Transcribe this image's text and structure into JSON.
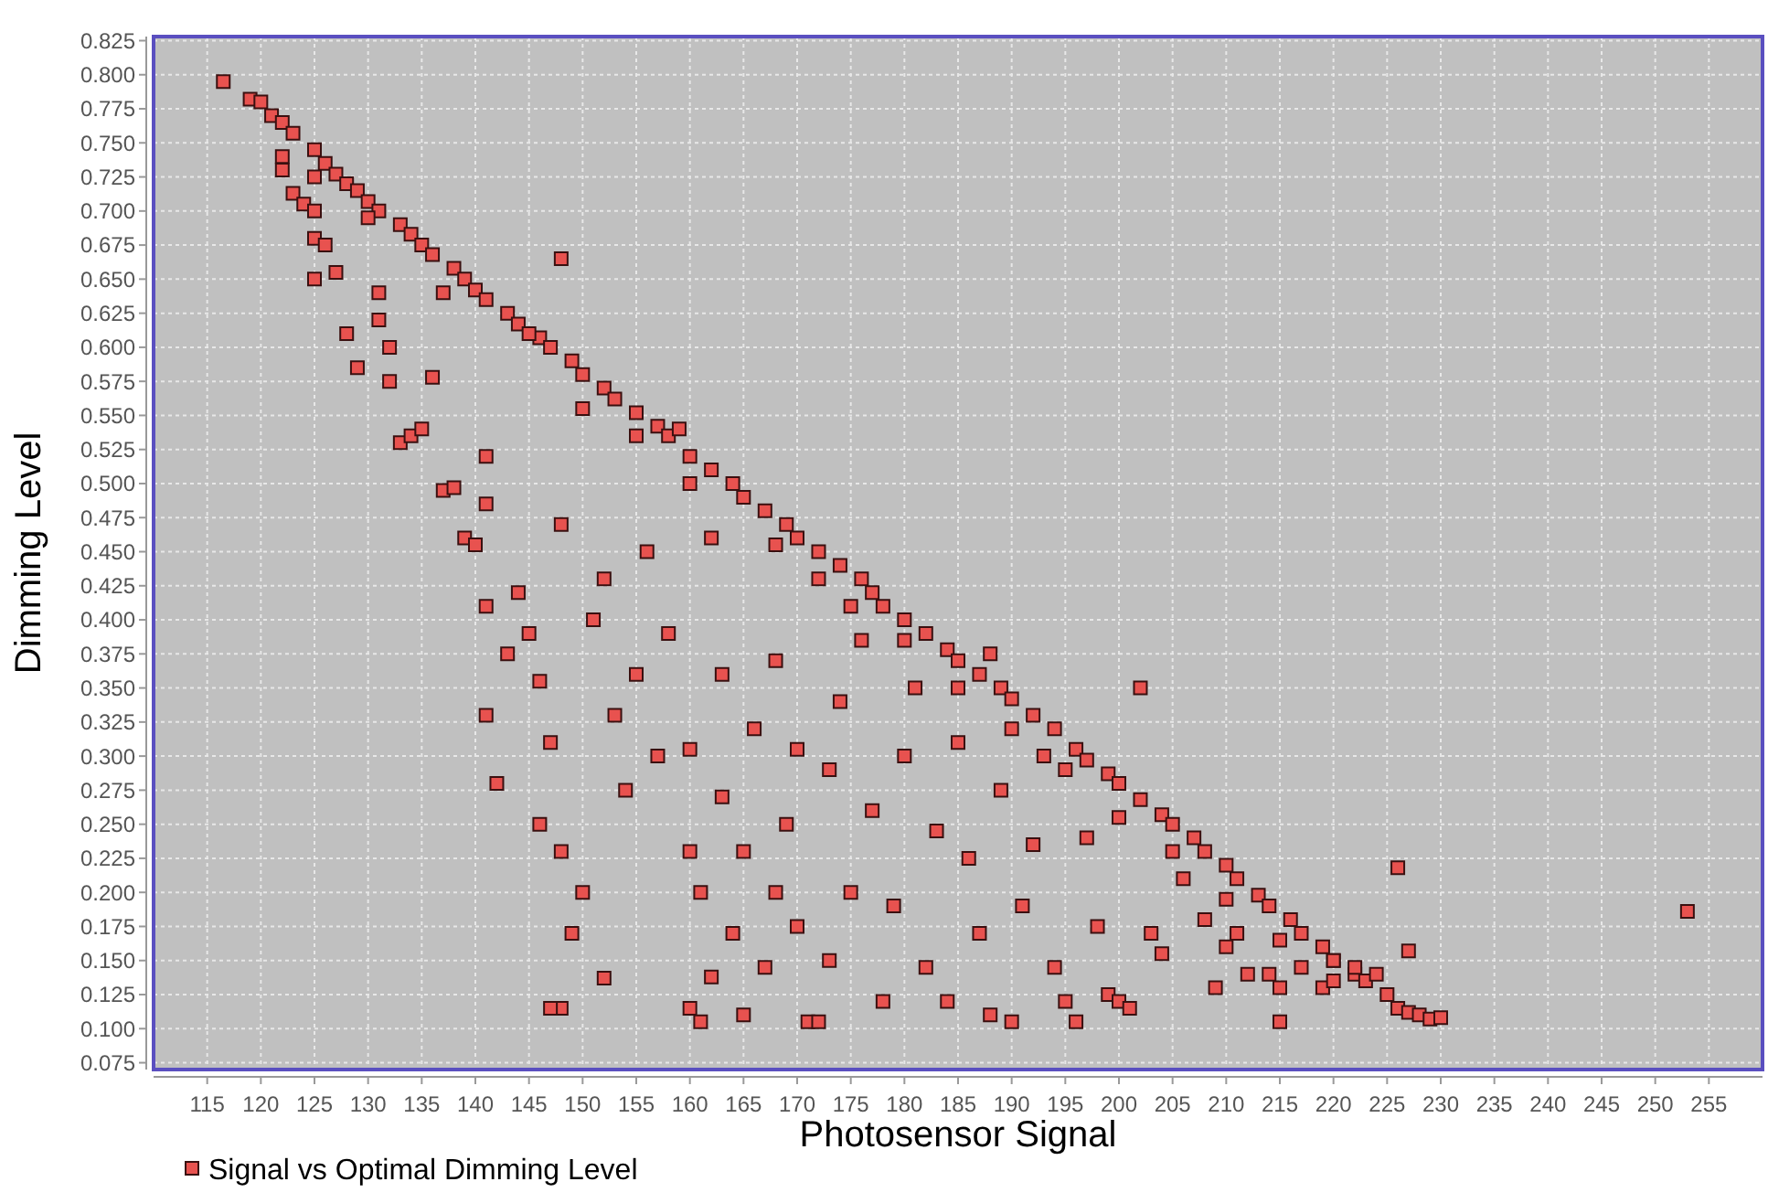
{
  "chart_data": {
    "type": "scatter",
    "xlabel": "Photosensor Signal",
    "ylabel": "Dimming Level",
    "xlim": [
      110,
      260
    ],
    "ylim": [
      0.07,
      0.828
    ],
    "xticks": [
      115,
      120,
      125,
      130,
      135,
      140,
      145,
      150,
      155,
      160,
      165,
      170,
      175,
      180,
      185,
      190,
      195,
      200,
      205,
      210,
      215,
      220,
      225,
      230,
      235,
      240,
      245,
      250,
      255
    ],
    "yticks": [
      {
        "value": 0.075,
        "label": "0.075"
      },
      {
        "value": 0.1,
        "label": "0.100"
      },
      {
        "value": 0.125,
        "label": "0.125"
      },
      {
        "value": 0.15,
        "label": "0.150"
      },
      {
        "value": 0.175,
        "label": "0.175"
      },
      {
        "value": 0.2,
        "label": "0.200"
      },
      {
        "value": 0.225,
        "label": "0.225"
      },
      {
        "value": 0.25,
        "label": "0.250"
      },
      {
        "value": 0.275,
        "label": "0.275"
      },
      {
        "value": 0.3,
        "label": "0.300"
      },
      {
        "value": 0.325,
        "label": "0.325"
      },
      {
        "value": 0.35,
        "label": "0.350"
      },
      {
        "value": 0.375,
        "label": "0.375"
      },
      {
        "value": 0.4,
        "label": "0.400"
      },
      {
        "value": 0.425,
        "label": "0.425"
      },
      {
        "value": 0.45,
        "label": "0.450"
      },
      {
        "value": 0.475,
        "label": "0.475"
      },
      {
        "value": 0.5,
        "label": "0.500"
      },
      {
        "value": 0.525,
        "label": "0.525"
      },
      {
        "value": 0.55,
        "label": "0.550"
      },
      {
        "value": 0.575,
        "label": "0.575"
      },
      {
        "value": 0.6,
        "label": "0.600"
      },
      {
        "value": 0.625,
        "label": "0.625"
      },
      {
        "value": 0.65,
        "label": "0.650"
      },
      {
        "value": 0.675,
        "label": "0.675"
      },
      {
        "value": 0.7,
        "label": "0.700"
      },
      {
        "value": 0.725,
        "label": "0.725"
      },
      {
        "value": 0.75,
        "label": "0.750"
      },
      {
        "value": 0.775,
        "label": "0.775"
      },
      {
        "value": 0.8,
        "label": "0.800"
      },
      {
        "value": 0.825,
        "label": "0.825"
      }
    ],
    "grid": true,
    "legend": "bottom left",
    "marker": "square",
    "series": [
      {
        "name": "Signal vs Optimal Dimming Level",
        "color": "#e8524f",
        "x": [
          116.5,
          119,
          120,
          121,
          122,
          123,
          125,
          126,
          127,
          128,
          129,
          130,
          131,
          133,
          134,
          135,
          136,
          138,
          139,
          140,
          141,
          143,
          144,
          146,
          147,
          149,
          150,
          152,
          153,
          155,
          157,
          158,
          160,
          162,
          164,
          165,
          167,
          169,
          170,
          172,
          174,
          176,
          177,
          178,
          180,
          182,
          184,
          185,
          187,
          189,
          190,
          192,
          194,
          196,
          197,
          199,
          200,
          202,
          204,
          205,
          207,
          208,
          210,
          211,
          213,
          214,
          216,
          217,
          219,
          220,
          222,
          223,
          225,
          226,
          227,
          228,
          229,
          230,
          122,
          122,
          123,
          124,
          125,
          125,
          126,
          125,
          127,
          128,
          129,
          131,
          131,
          132,
          132,
          133,
          134,
          135,
          136,
          137,
          138,
          139,
          140,
          141,
          141,
          141,
          141,
          142,
          143,
          144,
          145,
          146,
          146,
          147,
          148,
          148,
          148,
          149,
          150,
          148,
          147,
          152,
          151,
          152,
          153,
          154,
          155,
          156,
          157,
          158,
          159,
          160,
          160,
          161,
          161,
          160,
          162,
          162,
          163,
          163,
          164,
          165,
          165,
          166,
          167,
          168,
          168,
          169,
          170,
          170,
          171,
          172,
          172,
          173,
          173,
          174,
          175,
          176,
          177,
          178,
          179,
          180,
          181,
          182,
          183,
          184,
          185,
          186,
          187,
          188,
          188,
          189,
          190,
          191,
          192,
          193,
          194,
          195,
          196,
          197,
          198,
          199,
          200,
          201,
          202,
          203,
          204,
          206,
          208,
          209,
          210,
          211,
          212,
          214,
          215,
          215,
          217,
          219,
          220,
          222,
          224,
          226,
          227,
          253,
          125,
          130,
          137,
          145,
          150,
          155,
          160,
          168,
          175,
          180,
          185,
          190,
          195,
          200,
          205,
          210,
          215,
          220
        ],
        "values": [
          0.795,
          0.782,
          0.78,
          0.77,
          0.765,
          0.757,
          0.745,
          0.735,
          0.727,
          0.72,
          0.715,
          0.707,
          0.7,
          0.69,
          0.683,
          0.675,
          0.668,
          0.658,
          0.65,
          0.642,
          0.635,
          0.625,
          0.617,
          0.607,
          0.6,
          0.59,
          0.58,
          0.57,
          0.562,
          0.552,
          0.542,
          0.535,
          0.52,
          0.51,
          0.5,
          0.49,
          0.48,
          0.47,
          0.46,
          0.45,
          0.44,
          0.43,
          0.42,
          0.41,
          0.4,
          0.39,
          0.378,
          0.37,
          0.36,
          0.35,
          0.342,
          0.33,
          0.32,
          0.305,
          0.297,
          0.287,
          0.28,
          0.268,
          0.257,
          0.25,
          0.24,
          0.23,
          0.22,
          0.21,
          0.198,
          0.19,
          0.18,
          0.17,
          0.16,
          0.15,
          0.14,
          0.135,
          0.125,
          0.115,
          0.112,
          0.11,
          0.107,
          0.108,
          0.74,
          0.73,
          0.713,
          0.705,
          0.7,
          0.68,
          0.675,
          0.65,
          0.655,
          0.61,
          0.585,
          0.64,
          0.62,
          0.6,
          0.575,
          0.53,
          0.535,
          0.54,
          0.578,
          0.495,
          0.497,
          0.46,
          0.455,
          0.52,
          0.485,
          0.41,
          0.33,
          0.28,
          0.375,
          0.42,
          0.39,
          0.355,
          0.25,
          0.31,
          0.665,
          0.47,
          0.23,
          0.17,
          0.2,
          0.115,
          0.115,
          0.137,
          0.4,
          0.43,
          0.33,
          0.275,
          0.36,
          0.45,
          0.3,
          0.39,
          0.54,
          0.305,
          0.23,
          0.2,
          0.105,
          0.115,
          0.138,
          0.46,
          0.27,
          0.36,
          0.17,
          0.23,
          0.11,
          0.32,
          0.145,
          0.37,
          0.2,
          0.25,
          0.305,
          0.175,
          0.105,
          0.105,
          0.43,
          0.29,
          0.15,
          0.34,
          0.2,
          0.385,
          0.26,
          0.12,
          0.19,
          0.3,
          0.35,
          0.145,
          0.245,
          0.12,
          0.31,
          0.225,
          0.17,
          0.11,
          0.375,
          0.275,
          0.105,
          0.19,
          0.235,
          0.3,
          0.145,
          0.12,
          0.105,
          0.24,
          0.175,
          0.125,
          0.12,
          0.115,
          0.35,
          0.17,
          0.155,
          0.21,
          0.18,
          0.13,
          0.16,
          0.17,
          0.14,
          0.14,
          0.13,
          0.105,
          0.145,
          0.13,
          0.15,
          0.145,
          0.14,
          0.218,
          0.157,
          0.186,
          0.725,
          0.695,
          0.64,
          0.61,
          0.555,
          0.535,
          0.5,
          0.455,
          0.41,
          0.385,
          0.35,
          0.32,
          0.29,
          0.255,
          0.23,
          0.195,
          0.165,
          0.135
        ]
      }
    ]
  }
}
